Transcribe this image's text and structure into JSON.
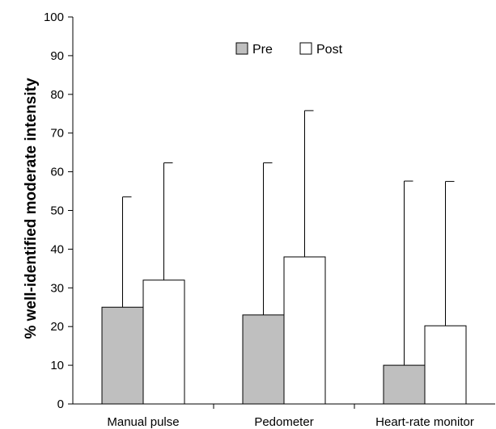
{
  "chart_data": {
    "type": "bar",
    "title": "",
    "xlabel": "",
    "ylabel": "% well-identified moderate intensity",
    "ylim": [
      0,
      100
    ],
    "yticks": [
      0,
      10,
      20,
      30,
      40,
      50,
      60,
      70,
      80,
      90,
      100
    ],
    "grid": false,
    "legend_position": "top-center",
    "categories": [
      "Manual pulse",
      "Pedometer",
      "Heart-rate monitor"
    ],
    "series": [
      {
        "name": "Pre",
        "color": "#bfbfbf",
        "values": [
          25,
          23,
          10
        ],
        "error_upper": [
          53.5,
          62.3,
          57.6
        ]
      },
      {
        "name": "Post",
        "color": "#ffffff",
        "values": [
          32,
          38,
          20.2
        ],
        "error_upper": [
          62.3,
          75.8,
          57.5
        ]
      }
    ]
  }
}
